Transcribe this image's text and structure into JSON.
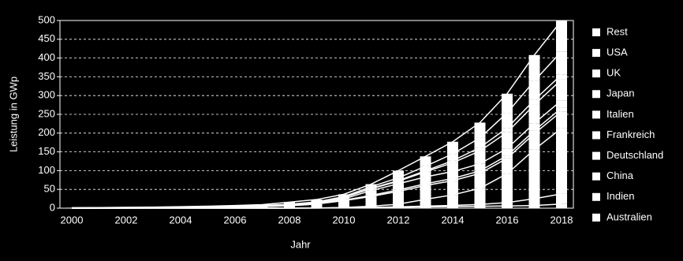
{
  "chart_data": {
    "type": "stacked_bar",
    "xlabel": "Jahr",
    "ylabel": "Leistung in GWp",
    "categories": [
      "2000",
      null,
      "2002",
      null,
      "2004",
      null,
      "2006",
      null,
      "2008",
      null,
      "2010",
      null,
      "2012",
      null,
      "2014",
      null,
      "2016",
      null,
      "2018"
    ],
    "ylim": [
      0,
      500
    ],
    "yticks": [
      0,
      50,
      100,
      150,
      200,
      250,
      300,
      350,
      400,
      450,
      500
    ],
    "grid": true,
    "series": [
      {
        "name": "Rest",
        "color": "#ffffff",
        "values": [
          0.7,
          0.7,
          1.1,
          1.2,
          1.3,
          1.3,
          1.6,
          2.2,
          5.8,
          6.3,
          6.2,
          6.8,
          19.3,
          26.3,
          32.3,
          40.9,
          51,
          68.9,
          82.4
        ]
      },
      {
        "name": "USA",
        "color": "#ffffff",
        "values": [
          0.1,
          0.2,
          0.2,
          0.3,
          0.4,
          0.5,
          0.6,
          0.8,
          1.2,
          1.6,
          2.5,
          4.4,
          7.3,
          12,
          18.3,
          25.6,
          40.3,
          51,
          62
        ]
      },
      {
        "name": "UK",
        "color": "#ffffff",
        "values": [
          0,
          0,
          0,
          0,
          0,
          0,
          0,
          0,
          0,
          0,
          0.1,
          1,
          1.8,
          2.9,
          5.5,
          9.1,
          11.6,
          12.8,
          13
        ]
      },
      {
        "name": "Japan",
        "color": "#ffffff",
        "values": [
          0.3,
          0.5,
          0.6,
          0.9,
          1.1,
          1.4,
          1.7,
          1.9,
          2.1,
          2.6,
          3.6,
          4.9,
          6.6,
          13.6,
          23.3,
          34.2,
          42.8,
          49,
          55.5
        ]
      },
      {
        "name": "Italien",
        "color": "#ffffff",
        "values": [
          0,
          0,
          0,
          0,
          0,
          0,
          0,
          0.1,
          0.5,
          1.1,
          3.5,
          12.8,
          16.4,
          18.2,
          18.6,
          18.9,
          19.3,
          19.7,
          20.1
        ]
      },
      {
        "name": "Frankreich",
        "color": "#ffffff",
        "values": [
          0,
          0,
          0,
          0,
          0,
          0,
          0,
          0.1,
          0.1,
          0.3,
          1.2,
          2.9,
          4,
          4.7,
          5.7,
          6.6,
          7.1,
          8,
          9
        ]
      },
      {
        "name": "Deutschland",
        "color": "#ffffff",
        "values": [
          0.1,
          0.2,
          0.3,
          0.4,
          1.1,
          2,
          2.9,
          4.2,
          6.1,
          10.6,
          18,
          25.9,
          34,
          36.7,
          38,
          39.7,
          41,
          42.4,
          45
        ]
      },
      {
        "name": "China",
        "color": "#ffffff",
        "values": [
          0,
          0,
          0,
          0.1,
          0.1,
          0.1,
          0.1,
          0.1,
          0.1,
          0.3,
          0.8,
          3.3,
          7,
          18,
          28,
          43,
          77,
          131,
          175
        ]
      },
      {
        "name": "Indien",
        "color": "#ffffff",
        "values": [
          0,
          0,
          0,
          0,
          0,
          0,
          0,
          0,
          0,
          0,
          0.1,
          0.6,
          1.2,
          2.3,
          3.2,
          5,
          9,
          18,
          27
        ]
      },
      {
        "name": "Australien",
        "color": "#ffffff",
        "values": [
          0.03,
          0.03,
          0.04,
          0.05,
          0.05,
          0.06,
          0.07,
          0.08,
          0.1,
          0.2,
          1,
          1.4,
          2.4,
          3.3,
          4.1,
          5,
          5.9,
          7.2,
          11
        ]
      }
    ]
  }
}
